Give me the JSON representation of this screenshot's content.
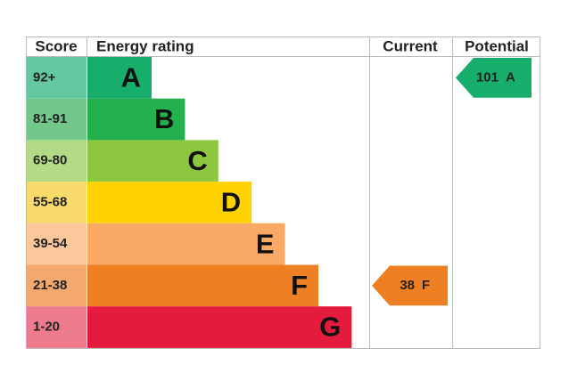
{
  "header": {
    "score": "Score",
    "rating": "Energy rating",
    "current": "Current",
    "potential": "Potential"
  },
  "bands": [
    {
      "score": "92+",
      "letter": "A",
      "color": "#17ae6c",
      "score_color": "#63c7a0"
    },
    {
      "score": "81-91",
      "letter": "B",
      "color": "#22b14c",
      "score_color": "#74c78a"
    },
    {
      "score": "69-80",
      "letter": "C",
      "color": "#8dc63f",
      "score_color": "#b3da86"
    },
    {
      "score": "55-68",
      "letter": "D",
      "color": "#ffd200",
      "score_color": "#f7da6a"
    },
    {
      "score": "39-54",
      "letter": "E",
      "color": "#fbaa66",
      "score_color": "#fbc79b"
    },
    {
      "score": "21-38",
      "letter": "F",
      "color": "#ee7f22",
      "score_color": "#f3a86d"
    },
    {
      "score": "1-20",
      "letter": "G",
      "color": "#e41b3d",
      "score_color": "#ee7a8d"
    }
  ],
  "current": {
    "value": 38,
    "letter": "F"
  },
  "potential": {
    "value": 101,
    "letter": "A"
  }
}
